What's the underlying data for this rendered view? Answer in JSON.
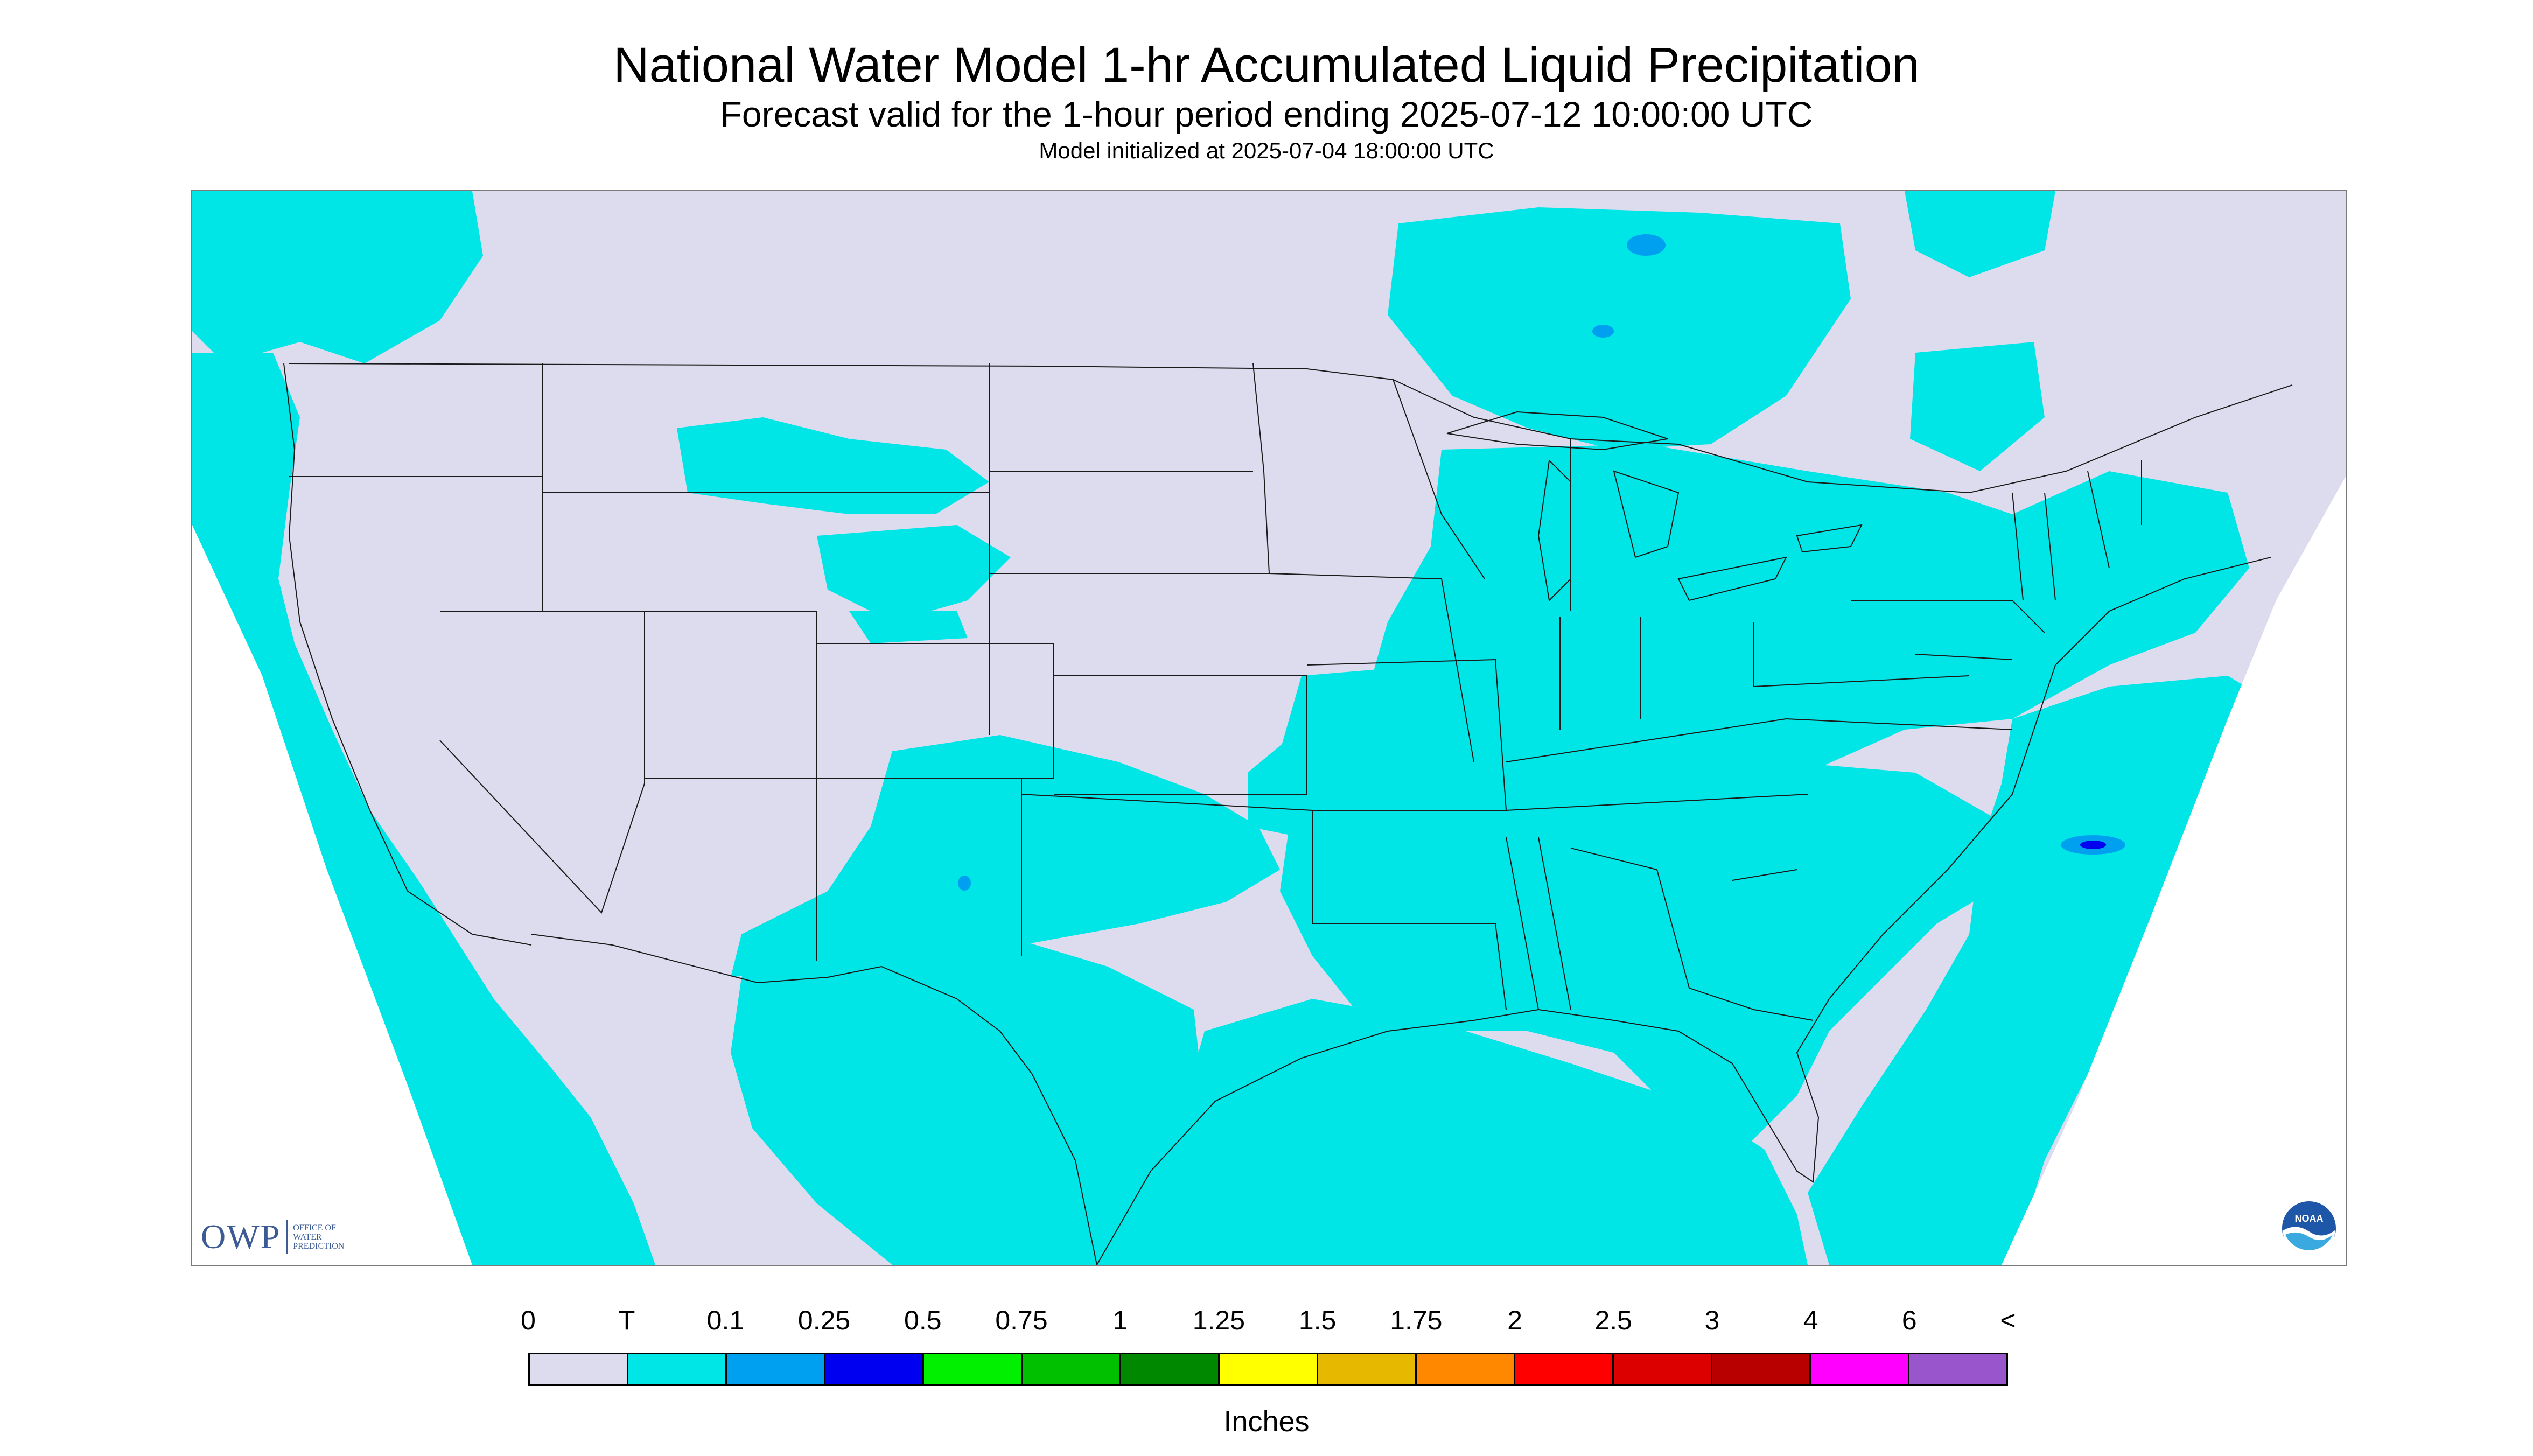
{
  "title": "National Water Model 1-hr Accumulated Liquid Precipitation",
  "subtitle": "Forecast valid for the 1-hour period ending 2025-07-12 10:00:00 UTC",
  "init_line": "Model initialized at 2025-07-04 18:00:00 UTC",
  "colors": {
    "none": "#dcdcee",
    "trace": "#00e5e5",
    "outline": "#1a1a1a",
    "frame": "#7a7a7a",
    "owp_blue": "#3c5a93"
  },
  "logos": {
    "owp_mark": "OWP",
    "owp_text": "OFFICE OF\nWATER\nPREDICTION",
    "noaa_text": "NOAA"
  },
  "legend": {
    "labels": [
      "0",
      "T",
      "0.1",
      "0.25",
      "0.5",
      "0.75",
      "1",
      "1.25",
      "1.5",
      "1.75",
      "2",
      "2.5",
      "3",
      "4",
      "6",
      "<"
    ],
    "colors": [
      "#dcdcee",
      "#00e5e5",
      "#00a0f0",
      "#0000f0",
      "#00f000",
      "#00c000",
      "#008800",
      "#ffff00",
      "#e6b800",
      "#ff8800",
      "#ff0000",
      "#dd0000",
      "#b80000",
      "#ff00ff",
      "#9955cc"
    ],
    "units": "Inches"
  },
  "icons": [
    "owp-logo",
    "noaa-logo"
  ]
}
